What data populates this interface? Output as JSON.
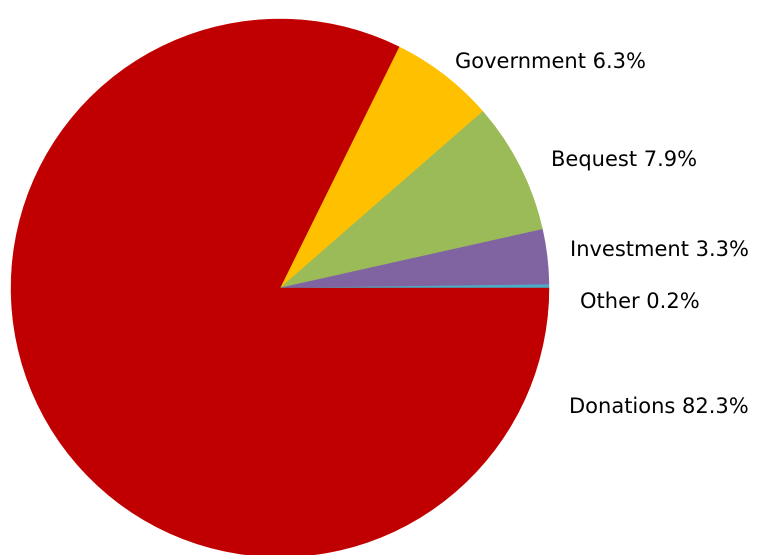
{
  "chart_data": {
    "type": "pie",
    "title": "",
    "start_angle_deg": 90,
    "direction": "counterclockwise_from_east_end",
    "slices": [
      {
        "name": "Government",
        "value": 6.3,
        "label": "Government 6.3%",
        "color": "#FFC000"
      },
      {
        "name": "Bequest",
        "value": 7.9,
        "label": "Bequest 7.9%",
        "color": "#9BBB59"
      },
      {
        "name": "Investment",
        "value": 3.3,
        "label": "Investment 3.3%",
        "color": "#8064A2"
      },
      {
        "name": "Other",
        "value": 0.2,
        "label": "Other 0.2%",
        "color": "#4BACC6"
      },
      {
        "name": "Donations",
        "value": 82.3,
        "label": "Donations 82.3%",
        "color": "#C00000"
      }
    ],
    "legend": "none",
    "labels_position": "outside-right"
  }
}
